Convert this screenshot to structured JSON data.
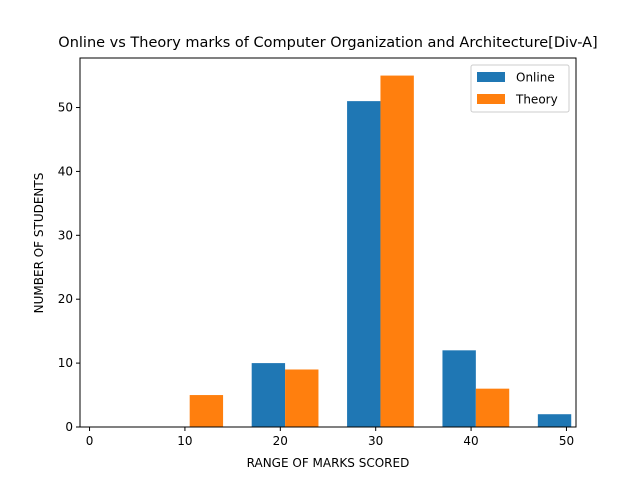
{
  "chart_data": {
    "type": "bar",
    "title": "Online vs Theory marks of Computer Organization and Architecture[Div-A]",
    "xlabel": "RANGE OF MARKS SCORED",
    "ylabel": "NUMBER OF STUDENTS",
    "xlim": [
      -1,
      51
    ],
    "ylim": [
      0,
      57.75
    ],
    "xticks": [
      0,
      10,
      20,
      30,
      40,
      50
    ],
    "yticks": [
      0,
      10,
      20,
      30,
      40,
      50
    ],
    "grid": false,
    "legend_position": "top-right",
    "bar_width": 3.5,
    "series": [
      {
        "name": "Online",
        "color": "#1f77b4",
        "x": [
          5,
          15,
          25,
          35,
          45
        ],
        "values": [
          0,
          10,
          51,
          12,
          2
        ]
      },
      {
        "name": "Theory",
        "color": "#ff7f0e",
        "x": [
          5,
          15,
          25,
          35,
          45
        ],
        "values": [
          5,
          9,
          55,
          6,
          0
        ]
      }
    ]
  }
}
